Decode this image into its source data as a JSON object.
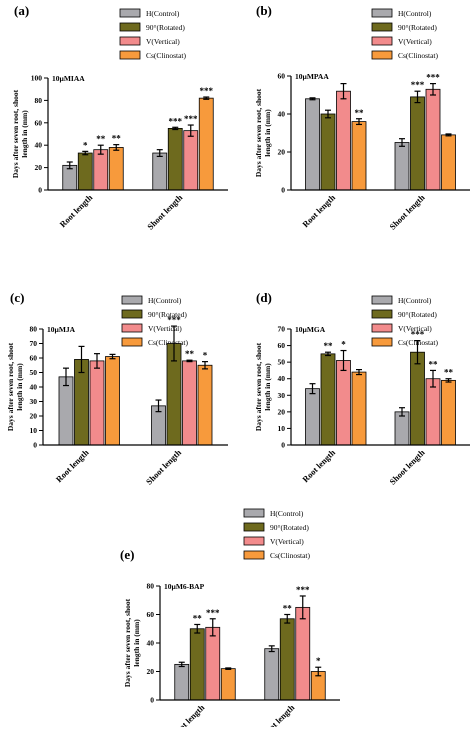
{
  "figure": {
    "series_colors": [
      "#a9a9ad",
      "#6e6a1e",
      "#f28b8c",
      "#f79a3c"
    ]
  },
  "chart_data": [
    {
      "panel": "(a)",
      "annotation": "10µMIAA",
      "type": "bar",
      "categories": [
        "Root length",
        "Shoot length"
      ],
      "series": [
        {
          "name": "H(Control)",
          "values": [
            22,
            33
          ],
          "errors": [
            3,
            3
          ],
          "significance": [
            "",
            ""
          ]
        },
        {
          "name": "90°(Rotated)",
          "values": [
            33,
            55
          ],
          "errors": [
            1.5,
            1
          ],
          "significance": [
            "*",
            "***"
          ]
        },
        {
          "name": "V(Vertical)",
          "values": [
            36,
            53
          ],
          "errors": [
            4,
            5
          ],
          "significance": [
            "**",
            "***"
          ]
        },
        {
          "name": "Cs(Clinostat)",
          "values": [
            38,
            82
          ],
          "errors": [
            2.5,
            1
          ],
          "significance": [
            "**",
            "***"
          ]
        }
      ],
      "ylabel": "Days after seven root, shoot length in (mm)",
      "ylim": [
        0,
        100
      ],
      "yticks": [
        0,
        20,
        40,
        60,
        80,
        100
      ],
      "legend_position": "top-right"
    },
    {
      "panel": "(b)",
      "annotation": "10µMPAA",
      "type": "bar",
      "categories": [
        "Root length",
        "Shoot length"
      ],
      "series": [
        {
          "name": "H(Control)",
          "values": [
            48,
            25
          ],
          "errors": [
            0.5,
            2
          ],
          "significance": [
            "",
            ""
          ]
        },
        {
          "name": "90°(Rotated)",
          "values": [
            40,
            49
          ],
          "errors": [
            2,
            3
          ],
          "significance": [
            "",
            "***"
          ]
        },
        {
          "name": "V(Vertical)",
          "values": [
            52,
            53
          ],
          "errors": [
            4,
            3
          ],
          "significance": [
            "",
            "***"
          ]
        },
        {
          "name": "Cs(Clinostat)",
          "values": [
            36,
            29
          ],
          "errors": [
            1.5,
            0.5
          ],
          "significance": [
            "**",
            ""
          ]
        }
      ],
      "ylabel": "Days after seven root, shoot length in (mm)",
      "ylim": [
        0,
        60
      ],
      "yticks": [
        0,
        20,
        40,
        60
      ],
      "legend_position": "top-right"
    },
    {
      "panel": "(c)",
      "annotation": "10µMJA",
      "type": "bar",
      "categories": [
        "Root length",
        "Shoot length"
      ],
      "series": [
        {
          "name": "H(Control)",
          "values": [
            47,
            27
          ],
          "errors": [
            6,
            4
          ],
          "significance": [
            "",
            ""
          ]
        },
        {
          "name": "90°(Rotated)",
          "values": [
            59,
            70
          ],
          "errors": [
            9,
            12
          ],
          "significance": [
            "",
            "***"
          ]
        },
        {
          "name": "V(Vertical)",
          "values": [
            58,
            58
          ],
          "errors": [
            5,
            0.5
          ],
          "significance": [
            "",
            "**"
          ]
        },
        {
          "name": "Cs(Clinostat)",
          "values": [
            61,
            55
          ],
          "errors": [
            1.5,
            2.5
          ],
          "significance": [
            "",
            "*"
          ]
        }
      ],
      "ylabel": "Days after seven root, shoot length in (mm)",
      "ylim": [
        0,
        80
      ],
      "yticks": [
        0,
        10,
        20,
        30,
        40,
        50,
        60,
        70,
        80
      ],
      "legend_position": "top-right"
    },
    {
      "panel": "(d)",
      "annotation": "10µMGA",
      "type": "bar",
      "categories": [
        "Root length",
        "Shoot length"
      ],
      "series": [
        {
          "name": "H(Control)",
          "values": [
            34,
            20
          ],
          "errors": [
            3,
            2.5
          ],
          "significance": [
            "",
            ""
          ]
        },
        {
          "name": "90°(Rotated)",
          "values": [
            55,
            56
          ],
          "errors": [
            1,
            7
          ],
          "significance": [
            "**",
            "***"
          ]
        },
        {
          "name": "V(Vertical)",
          "values": [
            51,
            40
          ],
          "errors": [
            6,
            5
          ],
          "significance": [
            "*",
            "**"
          ]
        },
        {
          "name": "Cs(Clinostat)",
          "values": [
            44,
            39
          ],
          "errors": [
            1.5,
            1
          ],
          "significance": [
            "",
            "**"
          ]
        }
      ],
      "ylabel": "Days after seven root, shoot length in (mm)",
      "ylim": [
        0,
        70
      ],
      "yticks": [
        0,
        10,
        20,
        30,
        40,
        50,
        60,
        70
      ],
      "legend_position": "top-right"
    },
    {
      "panel": "(e)",
      "annotation": "10µM6-BAP",
      "type": "bar",
      "categories": [
        "Root length",
        "Shoot length"
      ],
      "series": [
        {
          "name": "H(Control)",
          "values": [
            25,
            36
          ],
          "errors": [
            1.5,
            2
          ],
          "significance": [
            "",
            ""
          ]
        },
        {
          "name": "90°(Rotated)",
          "values": [
            50,
            57
          ],
          "errors": [
            3,
            3
          ],
          "significance": [
            "**",
            "**"
          ]
        },
        {
          "name": "V(Vertical)",
          "values": [
            51,
            65
          ],
          "errors": [
            6,
            8
          ],
          "significance": [
            "***",
            "***"
          ]
        },
        {
          "name": "Cs(Clinostat)",
          "values": [
            22,
            20
          ],
          "errors": [
            0.5,
            3
          ],
          "significance": [
            "",
            "*"
          ]
        }
      ],
      "ylabel": "Days after seven root, shoot length in (mm)",
      "ylim": [
        0,
        80
      ],
      "yticks": [
        0,
        20,
        40,
        60,
        80
      ],
      "legend_position": "top-right"
    }
  ]
}
